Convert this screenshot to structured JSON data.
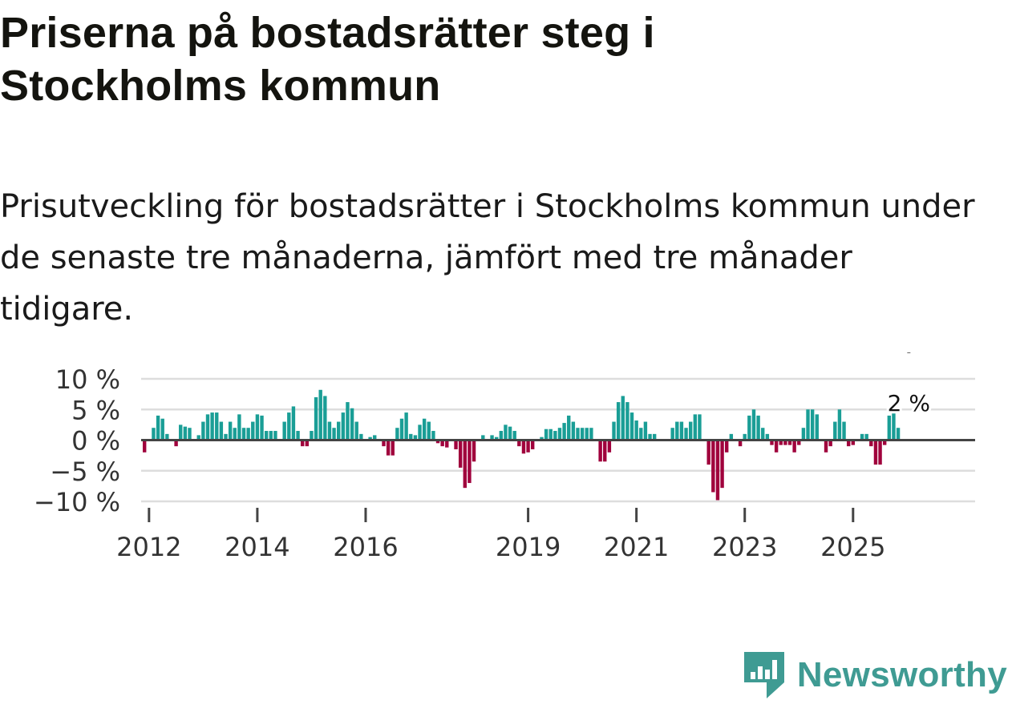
{
  "title": "Priserna på bostadsrätter steg i Stockholms kommun",
  "subtitle": "Prisutveckling för bostadsrätter i Stockholms kommun under de senaste tre månaderna, jämfört med tre månader tidigare.",
  "brand": {
    "name": "Newsworthy",
    "color": "#3f9b93"
  },
  "colors": {
    "positive": "#1a9e96",
    "negative": "#a0003c",
    "grid": "#dddddd",
    "zero": "#444444"
  },
  "chart_data": {
    "type": "bar",
    "title": "",
    "xlabel": "",
    "ylabel": "",
    "x_start": "2011-12",
    "frequency": "monthly",
    "ylim": [
      -10,
      10
    ],
    "y_ticks": [
      10,
      5,
      0,
      -5,
      -10
    ],
    "y_tick_labels": [
      "10 %",
      "5 %",
      "0 %",
      "−5 %",
      "−10 %"
    ],
    "x_tick_labels": [
      {
        "label": "2012",
        "index": 1
      },
      {
        "label": "2014",
        "index": 25
      },
      {
        "label": "2016",
        "index": 49
      },
      {
        "label": "2019",
        "index": 85
      },
      {
        "label": "2021",
        "index": 109
      },
      {
        "label": "2023",
        "index": 133
      },
      {
        "label": "2025",
        "index": 157
      }
    ],
    "annotation": {
      "text": "2 %",
      "index": 169
    },
    "values": [
      -2,
      0,
      2,
      4,
      3.5,
      1,
      0,
      -1,
      2.5,
      2.2,
      2,
      0,
      0.8,
      3,
      4.2,
      4.5,
      4.5,
      3,
      1,
      3,
      2,
      4.2,
      2,
      2,
      3,
      4.2,
      4,
      1.5,
      1.5,
      1.5,
      0,
      3,
      4.5,
      5.5,
      1.5,
      -1,
      -1,
      1.5,
      7,
      8.2,
      7.2,
      3,
      2,
      3,
      4.5,
      6.2,
      5.2,
      3,
      1,
      0,
      0.5,
      0.8,
      0.2,
      -1,
      -2.5,
      -2.5,
      2,
      3.5,
      4.5,
      1,
      0.8,
      2.5,
      3.5,
      3,
      1.5,
      -0.5,
      -1,
      -1.2,
      0,
      -1.5,
      -4.5,
      -7.8,
      -7,
      -3.5,
      0,
      0.8,
      0,
      0.8,
      0.5,
      1.5,
      2.5,
      2.2,
      1.5,
      -1,
      -2.2,
      -2,
      -1.5,
      0,
      0.5,
      1.8,
      1.8,
      1.5,
      2,
      2.8,
      4,
      3,
      2,
      2,
      2,
      2,
      0,
      -3.5,
      -3.5,
      -2,
      3,
      6.2,
      7.2,
      6.2,
      4.5,
      3.2,
      2,
      3,
      1,
      1,
      0,
      0,
      0,
      2,
      3,
      3,
      2,
      3,
      4.2,
      4.2,
      0,
      -4,
      -8.5,
      -9.8,
      -7.8,
      -2,
      1,
      0,
      -1,
      1,
      4,
      5,
      4,
      2,
      1,
      -0.8,
      -2,
      -0.8,
      -0.8,
      -0.8,
      -2,
      -0.8,
      2,
      5,
      5,
      4.2,
      0,
      -2,
      -1,
      3,
      5,
      3,
      -1,
      -0.8,
      0,
      1,
      1,
      -1,
      -4,
      -4,
      -0.8,
      4,
      4.5,
      2
    ]
  }
}
